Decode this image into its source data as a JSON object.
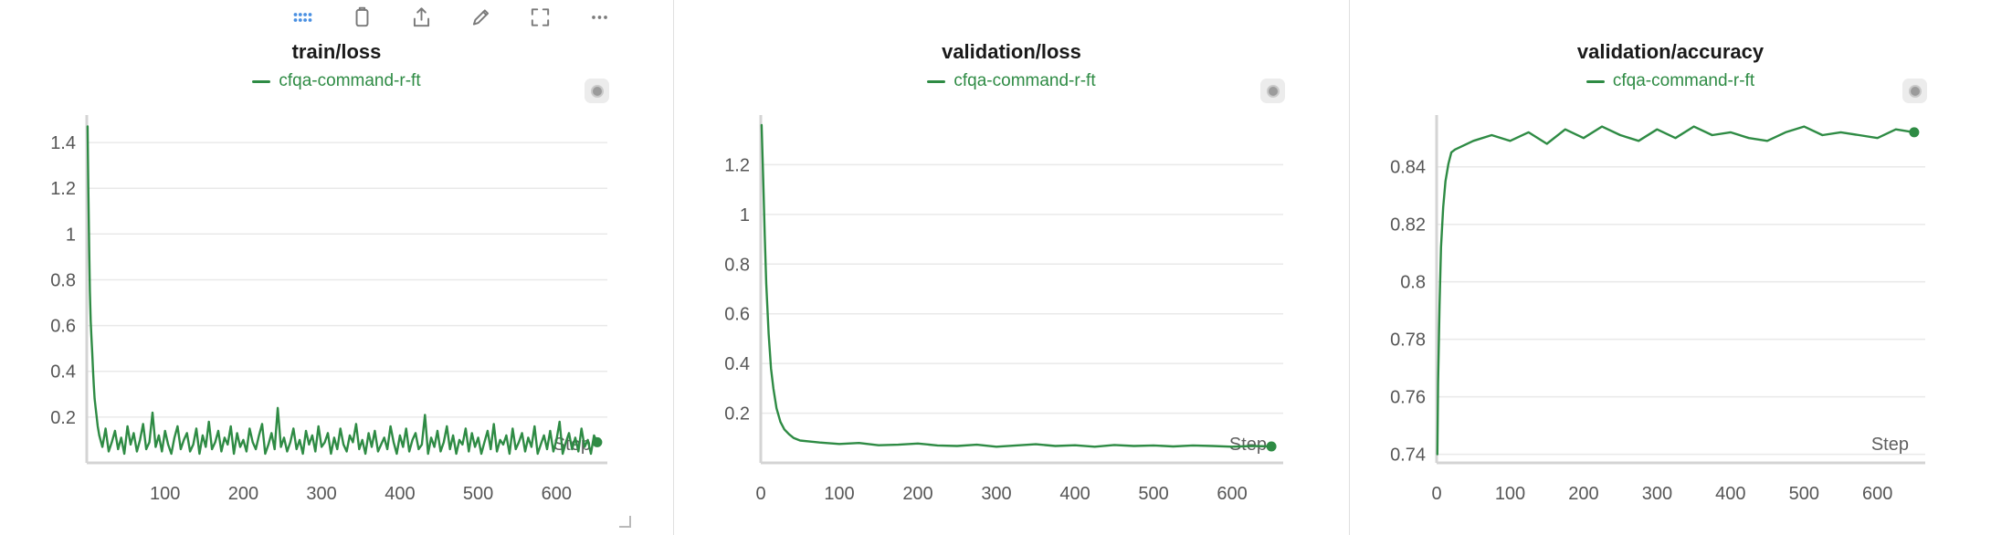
{
  "colors": {
    "line": "#2e8b44",
    "grid": "#e9e9e9",
    "axis": "#d4d4d4",
    "tick_text": "#565656",
    "title_text": "#1a1a1a",
    "legend_text": "#2e8b44",
    "step_text": "#5f5f5f",
    "toolbar_icon": "#7a7a7a",
    "drag_dots": "#4a90e2",
    "divider": "#e0e0e0",
    "chip_bg": "#ececec",
    "chip_dot": "#9b9b9b"
  },
  "toolbar": {
    "icons": [
      "drag-grid-icon",
      "copy-icon",
      "export-icon",
      "edit-icon",
      "fullscreen-icon",
      "overflow-menu-icon"
    ]
  },
  "chart_data": [
    {
      "type": "line",
      "title": "train/loss",
      "legend_position": "top-center",
      "grid": true,
      "step_label": "Step",
      "xlim": [
        0,
        665
      ],
      "ylim": [
        0,
        1.52
      ],
      "yticks": {
        "values": [
          0.2,
          0.4,
          0.6,
          0.8,
          1.0,
          1.2,
          1.4
        ],
        "labels": [
          "0.2",
          "0.4",
          "0.6",
          "0.8",
          "1",
          "1.2",
          "1.4"
        ]
      },
      "xticks": {
        "values": [
          100,
          200,
          300,
          400,
          500,
          600
        ],
        "labels": [
          "100",
          "200",
          "300",
          "400",
          "500",
          "600"
        ]
      },
      "series": [
        {
          "name": "cfqa-command-r-ft",
          "head": [
            [
              1,
              1.47
            ],
            [
              2,
              1.2
            ],
            [
              3,
              0.95
            ],
            [
              4,
              0.75
            ],
            [
              5,
              0.62
            ],
            [
              6,
              0.55
            ],
            [
              7,
              0.48
            ],
            [
              8,
              0.4
            ],
            [
              9,
              0.34
            ],
            [
              10,
              0.28
            ],
            [
              12,
              0.22
            ],
            [
              14,
              0.16
            ]
          ],
          "tail": {
            "x0": 16,
            "dx": 4,
            "y": [
              0.12,
              0.07,
              0.15,
              0.05,
              0.09,
              0.14,
              0.06,
              0.11,
              0.04,
              0.16,
              0.08,
              0.13,
              0.05,
              0.1,
              0.17,
              0.06,
              0.09,
              0.22,
              0.07,
              0.12,
              0.05,
              0.14,
              0.08,
              0.04,
              0.11,
              0.16,
              0.06,
              0.1,
              0.13,
              0.05,
              0.08,
              0.15,
              0.04,
              0.12,
              0.07,
              0.18,
              0.06,
              0.09,
              0.14,
              0.05,
              0.11,
              0.08,
              0.16,
              0.04,
              0.13,
              0.07,
              0.1,
              0.05,
              0.15,
              0.09,
              0.06,
              0.12,
              0.17,
              0.04,
              0.08,
              0.13,
              0.06,
              0.24,
              0.07,
              0.11,
              0.05,
              0.09,
              0.15,
              0.06,
              0.1,
              0.04,
              0.14,
              0.08,
              0.12,
              0.05,
              0.16,
              0.07,
              0.09,
              0.13,
              0.04,
              0.11,
              0.06,
              0.15,
              0.08,
              0.05,
              0.12,
              0.09,
              0.17,
              0.06,
              0.1,
              0.04,
              0.13,
              0.07,
              0.14,
              0.05,
              0.08,
              0.11,
              0.06,
              0.16,
              0.09,
              0.04,
              0.12,
              0.07,
              0.15,
              0.05,
              0.1,
              0.13,
              0.06,
              0.08,
              0.21,
              0.04,
              0.11,
              0.07,
              0.14,
              0.05,
              0.09,
              0.16,
              0.06,
              0.12,
              0.04,
              0.1,
              0.08,
              0.15,
              0.05,
              0.13,
              0.07,
              0.11,
              0.04,
              0.09,
              0.14,
              0.06,
              0.17,
              0.05,
              0.1,
              0.08,
              0.12,
              0.04,
              0.15,
              0.06,
              0.09,
              0.13,
              0.05,
              0.11,
              0.07,
              0.16,
              0.04,
              0.08,
              0.12,
              0.06,
              0.14,
              0.05,
              0.1,
              0.18,
              0.04,
              0.09,
              0.13,
              0.06,
              0.11,
              0.05,
              0.15,
              0.07,
              0.1,
              0.04,
              0.12,
              0.09
            ]
          },
          "end_dot": true
        }
      ]
    },
    {
      "type": "line",
      "title": "validation/loss",
      "legend_position": "top-center",
      "grid": true,
      "step_label": "Step",
      "xlim": [
        0,
        665
      ],
      "ylim": [
        0,
        1.4
      ],
      "yticks": {
        "values": [
          0.2,
          0.4,
          0.6,
          0.8,
          1.0,
          1.2
        ],
        "labels": [
          "0.2",
          "0.4",
          "0.6",
          "0.8",
          "1",
          "1.2"
        ]
      },
      "xticks": {
        "values": [
          0,
          100,
          200,
          300,
          400,
          500,
          600
        ],
        "labels": [
          "0",
          "100",
          "200",
          "300",
          "400",
          "500",
          "600"
        ]
      },
      "series": [
        {
          "name": "cfqa-command-r-ft",
          "head": [
            [
              1,
              1.36
            ],
            [
              3,
              1.15
            ],
            [
              5,
              0.92
            ],
            [
              7,
              0.72
            ],
            [
              10,
              0.52
            ],
            [
              13,
              0.38
            ],
            [
              16,
              0.3
            ],
            [
              20,
              0.22
            ],
            [
              25,
              0.165
            ],
            [
              30,
              0.135
            ],
            [
              36,
              0.115
            ],
            [
              42,
              0.1
            ]
          ],
          "tail": {
            "x0": 50,
            "dx": 25,
            "y": [
              0.09,
              0.082,
              0.076,
              0.08,
              0.071,
              0.073,
              0.078,
              0.07,
              0.068,
              0.073,
              0.065,
              0.07,
              0.075,
              0.068,
              0.071,
              0.065,
              0.072,
              0.068,
              0.07,
              0.066,
              0.07,
              0.068,
              0.065,
              0.068,
              0.066
            ]
          },
          "end_dot": true
        }
      ]
    },
    {
      "type": "line",
      "title": "validation/accuracy",
      "legend_position": "top-center",
      "grid": true,
      "step_label": "Step",
      "xlim": [
        0,
        665
      ],
      "ylim": [
        0.737,
        0.858
      ],
      "yticks": {
        "values": [
          0.74,
          0.76,
          0.78,
          0.8,
          0.82,
          0.84
        ],
        "labels": [
          "0.74",
          "0.76",
          "0.78",
          "0.8",
          "0.82",
          "0.84"
        ]
      },
      "xticks": {
        "values": [
          0,
          100,
          200,
          300,
          400,
          500,
          600
        ],
        "labels": [
          "0",
          "100",
          "200",
          "300",
          "400",
          "500",
          "600"
        ]
      },
      "series": [
        {
          "name": "cfqa-command-r-ft",
          "head": [
            [
              1,
              0.74
            ],
            [
              2,
              0.765
            ],
            [
              4,
              0.792
            ],
            [
              6,
              0.812
            ],
            [
              9,
              0.826
            ],
            [
              12,
              0.835
            ],
            [
              16,
              0.841
            ],
            [
              20,
              0.845
            ]
          ],
          "tail": {
            "x0": 25,
            "dx": 25,
            "y": [
              0.846,
              0.849,
              0.851,
              0.849,
              0.852,
              0.848,
              0.853,
              0.85,
              0.854,
              0.851,
              0.849,
              0.853,
              0.85,
              0.854,
              0.851,
              0.852,
              0.85,
              0.849,
              0.852,
              0.854,
              0.851,
              0.852,
              0.851,
              0.85,
              0.853,
              0.852
            ]
          },
          "end_dot": true
        }
      ]
    }
  ]
}
